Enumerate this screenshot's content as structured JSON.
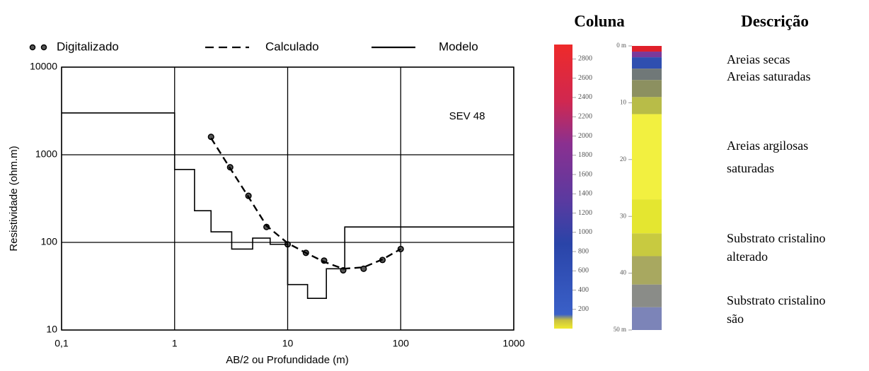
{
  "chart_data": {
    "type": "line",
    "annotation": "SEV 48",
    "xlabel": "AB/2 ou Profundidade (m)",
    "ylabel": "Resistividade (ohm.m)",
    "log_x": true,
    "log_y": true,
    "grid": true,
    "legend": "top",
    "xlim": [
      0.1,
      1000
    ],
    "xticks": [
      {
        "value": 0.1,
        "label": "0,1"
      },
      1,
      10,
      100,
      1000
    ],
    "ylim": [
      10,
      10000
    ],
    "yticks": [
      10,
      100,
      1000,
      10000
    ],
    "series": [
      {
        "name": "Digitalizado",
        "style": "markers",
        "color": "#000000",
        "x": [
          2.1,
          3.1,
          4.5,
          6.5,
          10,
          14.5,
          21,
          31,
          47,
          69,
          100
        ],
        "values": [
          1600,
          720,
          340,
          150,
          95,
          76,
          62,
          48,
          50,
          63,
          84
        ]
      },
      {
        "name": "Calculado",
        "style": "dashed",
        "color": "#000000",
        "x": [
          2.1,
          3.1,
          4.5,
          6.5,
          10,
          14.5,
          21,
          31,
          47,
          69,
          100
        ],
        "values": [
          1550,
          700,
          330,
          155,
          98,
          76,
          60,
          50,
          52,
          64,
          84
        ]
      },
      {
        "name": "Modelo",
        "style": "solid",
        "color": "#000000",
        "x": [
          0.1,
          1,
          1,
          1.5,
          1.5,
          2.1,
          2.1,
          3.2,
          3.2,
          4.9,
          4.9,
          7,
          7,
          10,
          10,
          15,
          15,
          22,
          22,
          32,
          32,
          1000
        ],
        "values": [
          3000,
          3000,
          680,
          680,
          230,
          230,
          132,
          132,
          84,
          84,
          112,
          112,
          95,
          95,
          33,
          33,
          23,
          23,
          50,
          50,
          150,
          150
        ]
      }
    ]
  },
  "colorbar": {
    "title": "Coluna",
    "lim": [
      0,
      2950
    ],
    "ticks": [
      200,
      400,
      600,
      800,
      1000,
      1200,
      1400,
      1600,
      1800,
      2000,
      2200,
      2400,
      2600,
      2800
    ]
  },
  "column": {
    "lim": [
      0,
      50
    ],
    "depth_ticks": [
      {
        "value": 0,
        "label": "0 m"
      },
      10,
      20,
      30,
      40,
      {
        "value": 50,
        "label": "50 m"
      }
    ],
    "layers": [
      {
        "top": 0,
        "bottom": 1,
        "color": "#e0202a"
      },
      {
        "top": 1,
        "bottom": 2,
        "color": "#7a3a9a"
      },
      {
        "top": 2,
        "bottom": 4,
        "color": "#2f4fb0"
      },
      {
        "top": 4,
        "bottom": 6,
        "color": "#707878"
      },
      {
        "top": 6,
        "bottom": 9,
        "color": "#8c9060"
      },
      {
        "top": 9,
        "bottom": 12,
        "color": "#b8bc48"
      },
      {
        "top": 12,
        "bottom": 27,
        "color": "#f2f040"
      },
      {
        "top": 27,
        "bottom": 33,
        "color": "#e4e630"
      },
      {
        "top": 33,
        "bottom": 37,
        "color": "#c8ca40"
      },
      {
        "top": 37,
        "bottom": 42,
        "color": "#a8a860"
      },
      {
        "top": 42,
        "bottom": 46,
        "color": "#8a8c88"
      },
      {
        "top": 46,
        "bottom": 50,
        "color": "#7c84b8"
      }
    ]
  },
  "description": {
    "title": "Descrição",
    "items": [
      [
        "Areias secas"
      ],
      [
        "Areias saturadas"
      ],
      [
        "Areias argilosas",
        "saturadas"
      ],
      [
        "Substrato cristalino",
        "alterado"
      ],
      [
        "Substrato cristalino",
        "são"
      ]
    ]
  }
}
